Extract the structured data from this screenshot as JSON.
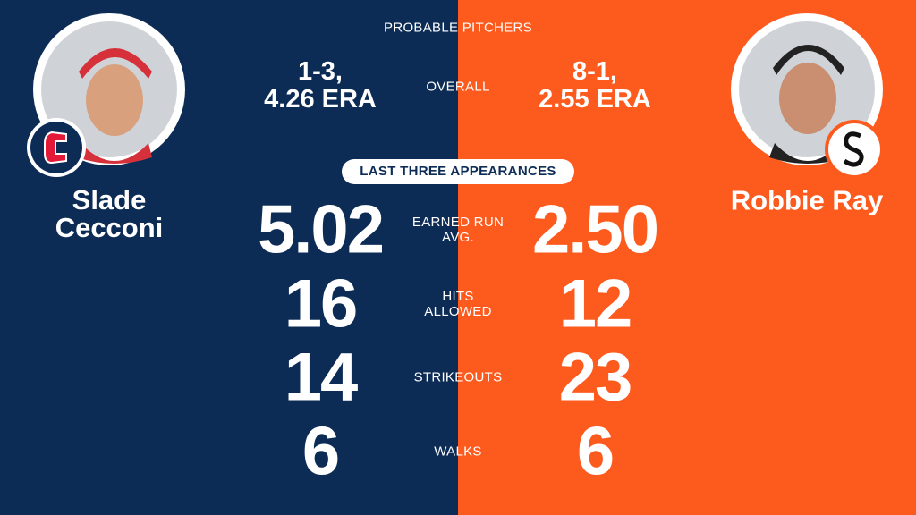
{
  "header": {
    "title": "PROBABLE PITCHERS"
  },
  "pitchers": [
    {
      "name": "Slade Cecconi",
      "overall": [
        "1-3,",
        "4.26 ERA"
      ]
    },
    {
      "name": "Robbie Ray",
      "overall": [
        "8-1,",
        "2.55 ERA"
      ]
    }
  ],
  "overall_label": "OVERALL",
  "section_label": "LAST THREE APPEARANCES",
  "stats": [
    {
      "label": "EARNED RUN AVG.",
      "left": "5.02",
      "right": "2.50"
    },
    {
      "label": "HITS ALLOWED",
      "left": "16",
      "right": "12"
    },
    {
      "label": "STRIKEOUTS",
      "left": "14",
      "right": "23"
    },
    {
      "label": "WALKS",
      "left": "6",
      "right": "6"
    }
  ]
}
